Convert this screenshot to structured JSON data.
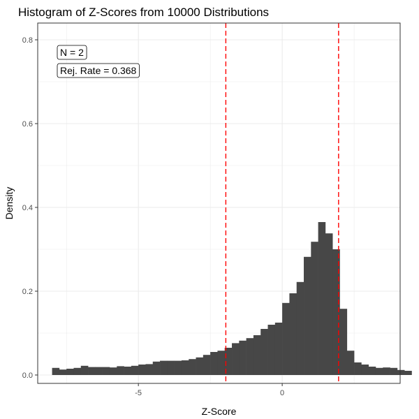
{
  "chart_data": {
    "type": "bar",
    "title": "Histogram of Z-Scores from 10000 Distributions",
    "xlabel": "Z-Score",
    "ylabel": "Density",
    "xlim": [
      -8.5,
      4.1
    ],
    "ylim": [
      -0.02,
      0.84
    ],
    "grid": true,
    "x_ticks": [
      -5,
      0
    ],
    "x_tick_labels": [
      "-5",
      "0"
    ],
    "y_ticks": [
      0.0,
      0.2,
      0.4,
      0.6,
      0.8
    ],
    "y_tick_labels": [
      "0.0",
      "0.2",
      "0.4",
      "0.6",
      "0.8"
    ],
    "bin_width": 0.25,
    "bin_start": -8.0,
    "values": [
      0.017,
      0.013,
      0.015,
      0.017,
      0.022,
      0.019,
      0.019,
      0.019,
      0.018,
      0.021,
      0.02,
      0.022,
      0.025,
      0.026,
      0.032,
      0.034,
      0.034,
      0.034,
      0.035,
      0.038,
      0.042,
      0.048,
      0.055,
      0.058,
      0.065,
      0.076,
      0.082,
      0.088,
      0.095,
      0.11,
      0.12,
      0.125,
      0.172,
      0.195,
      0.222,
      0.282,
      0.318,
      0.365,
      0.338,
      0.3,
      0.158,
      0.058,
      0.03,
      0.025,
      0.02,
      0.017,
      0.018,
      0.017,
      0.012,
      0.01
    ],
    "reference_lines": [
      -1.96,
      1.96
    ],
    "annotations": [
      "N = 2",
      "Rej. Rate = 0.368"
    ],
    "colors": {
      "bars": "#474747",
      "reference_lines": "#ff0000",
      "grid": "#ebebeb",
      "panel_border": "#333333"
    }
  }
}
